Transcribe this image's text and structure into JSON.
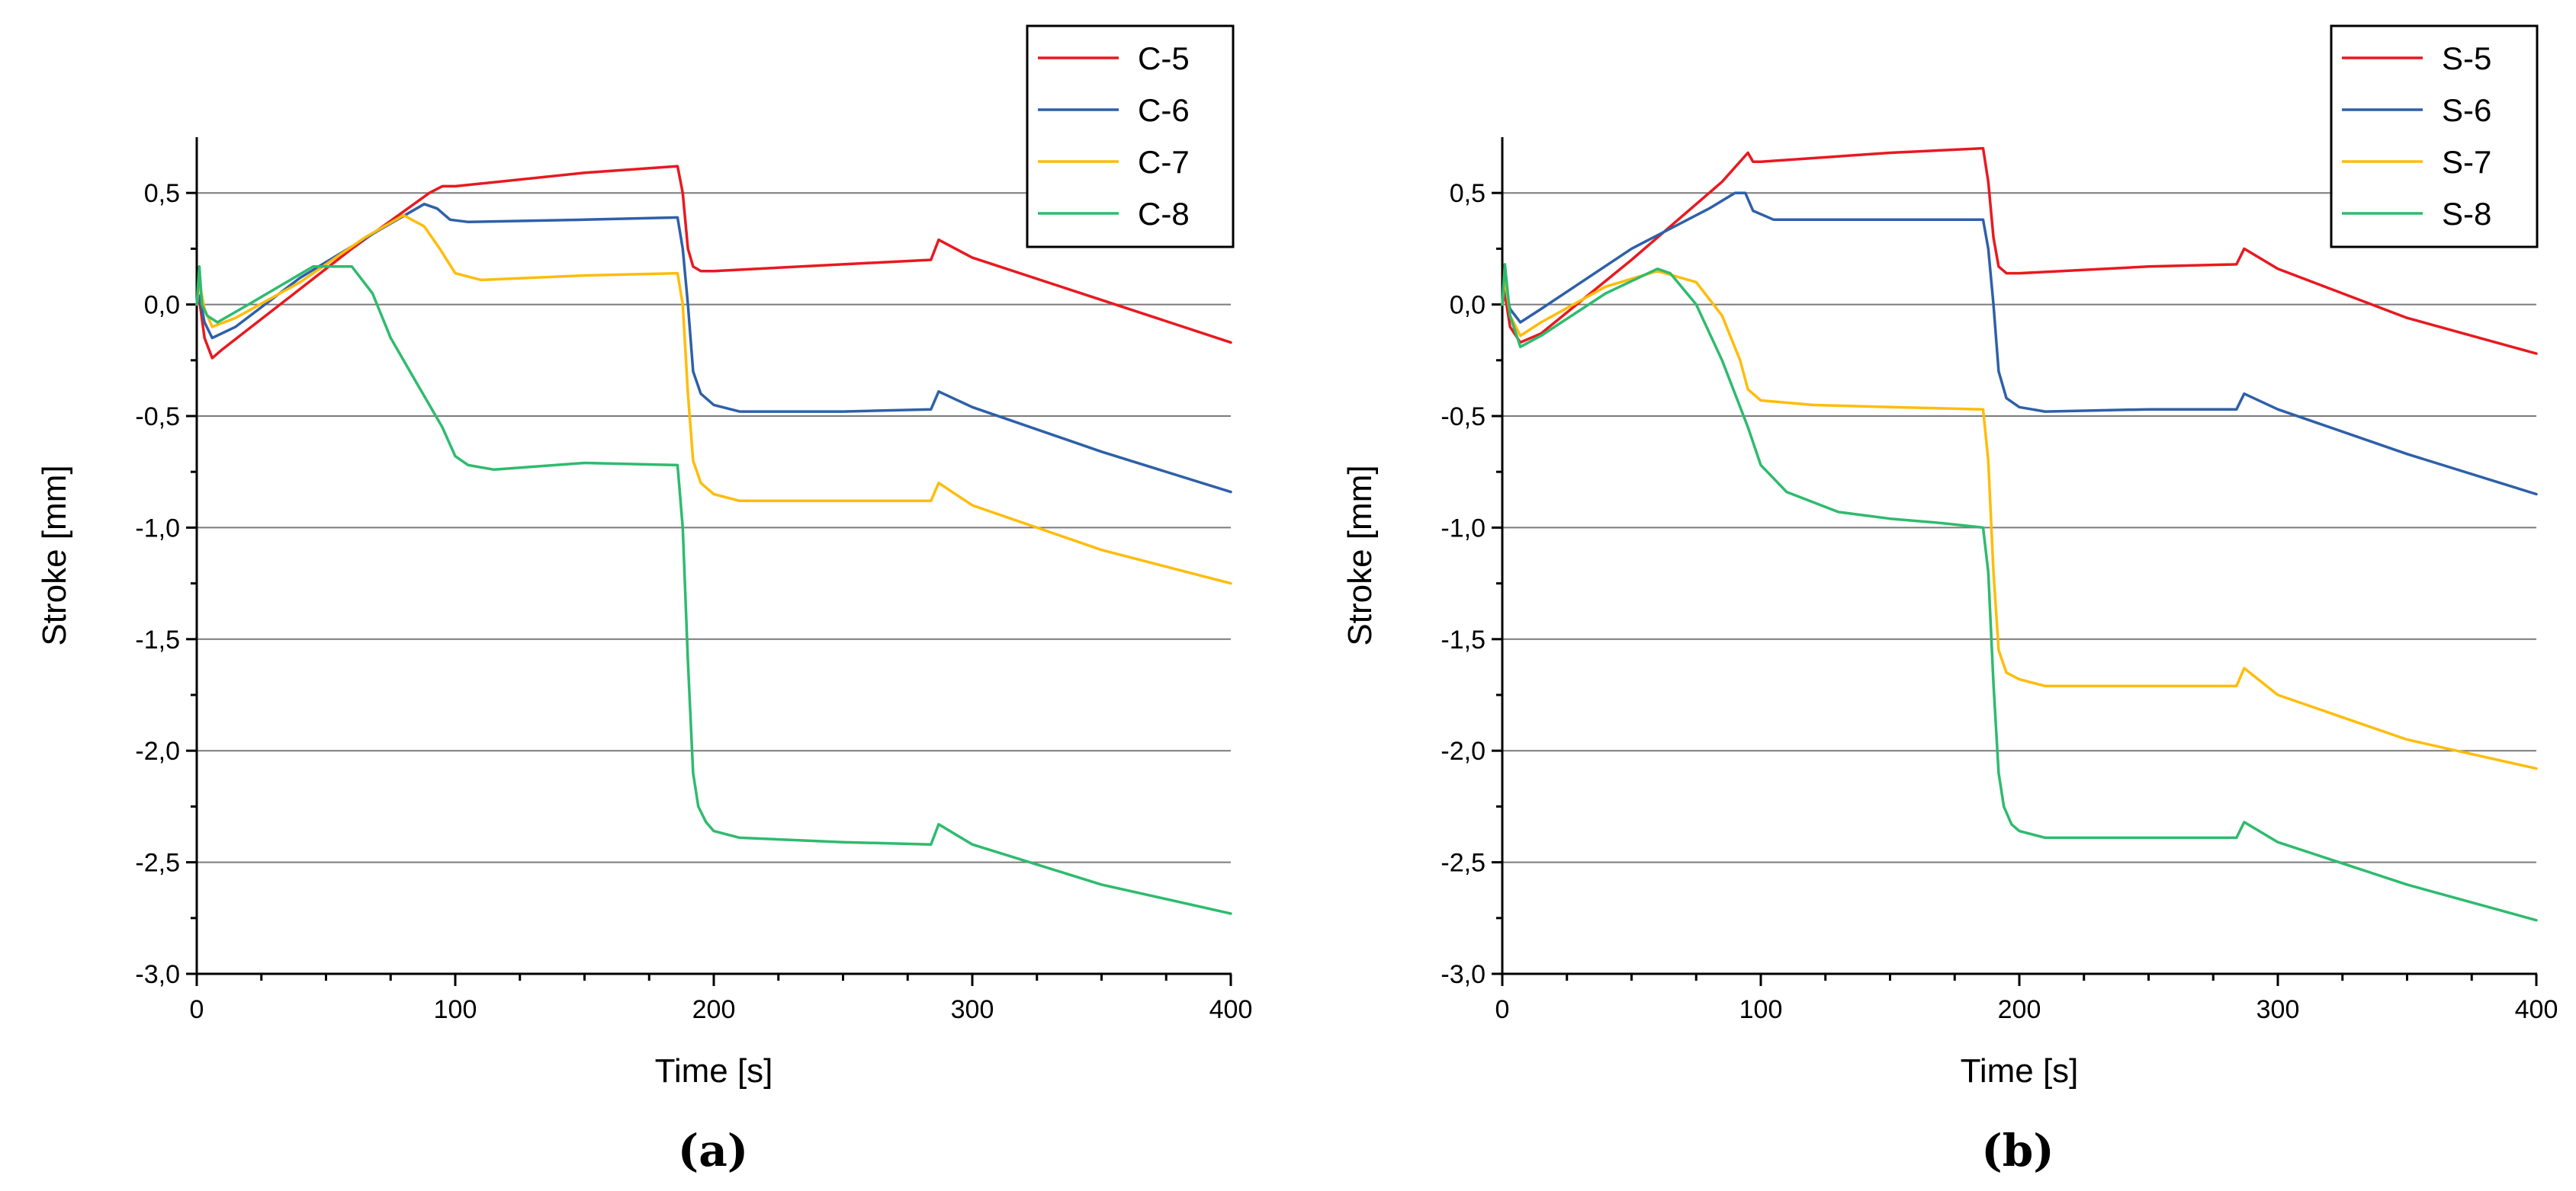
{
  "colors": {
    "red": "#e8191f",
    "blue": "#2e60a8",
    "orange": "#ffbc0a",
    "green": "#2ebb6e"
  },
  "chart_data": [
    {
      "type": "line",
      "panel_label": "(a)",
      "xlabel": "Time [s]",
      "ylabel": "Stroke [mm]",
      "xlim": [
        0,
        400
      ],
      "ylim": [
        -3.0,
        0.75
      ],
      "xticks": [
        0,
        100,
        200,
        300,
        400
      ],
      "xtick_labels": [
        "0",
        "100",
        "200",
        "300",
        "400"
      ],
      "yticks": [
        -3.0,
        -2.5,
        -2.0,
        -1.5,
        -1.0,
        -0.5,
        0.0,
        0.5
      ],
      "ytick_labels": [
        "-3,0",
        "-2,5",
        "-2,0",
        "-1,5",
        "-1,0",
        "-0,5",
        "0,0",
        "0,5"
      ],
      "grid": "horizontal",
      "legend": "top-right",
      "series": [
        {
          "name": "C-5",
          "color": "red",
          "x": [
            0,
            1,
            3,
            6,
            10,
            30,
            60,
            90,
            95,
            100,
            150,
            186,
            188,
            190,
            192,
            195,
            200,
            250,
            284,
            287,
            300,
            350,
            400
          ],
          "y": [
            0.0,
            0.02,
            -0.15,
            -0.24,
            -0.2,
            -0.02,
            0.25,
            0.5,
            0.53,
            0.53,
            0.59,
            0.62,
            0.5,
            0.25,
            0.17,
            0.15,
            0.15,
            0.18,
            0.2,
            0.29,
            0.21,
            0.02,
            -0.17
          ]
        },
        {
          "name": "C-6",
          "color": "blue",
          "x": [
            0,
            1,
            3,
            6,
            15,
            40,
            70,
            88,
            93,
            98,
            105,
            150,
            186,
            188,
            190,
            192,
            195,
            200,
            210,
            250,
            284,
            287,
            300,
            350,
            400
          ],
          "y": [
            0.0,
            0.04,
            -0.08,
            -0.15,
            -0.1,
            0.12,
            0.33,
            0.45,
            0.43,
            0.38,
            0.37,
            0.38,
            0.39,
            0.25,
            0.0,
            -0.3,
            -0.4,
            -0.45,
            -0.48,
            -0.48,
            -0.47,
            -0.39,
            -0.46,
            -0.66,
            -0.84
          ]
        },
        {
          "name": "C-7",
          "color": "orange",
          "x": [
            0,
            1,
            3,
            6,
            15,
            40,
            65,
            80,
            88,
            94,
            100,
            110,
            150,
            186,
            188,
            190,
            192,
            195,
            200,
            210,
            250,
            284,
            287,
            300,
            350,
            400
          ],
          "y": [
            0.0,
            0.1,
            -0.02,
            -0.1,
            -0.06,
            0.1,
            0.3,
            0.4,
            0.35,
            0.25,
            0.14,
            0.11,
            0.13,
            0.14,
            0.0,
            -0.4,
            -0.7,
            -0.8,
            -0.85,
            -0.88,
            -0.88,
            -0.88,
            -0.8,
            -0.9,
            -1.1,
            -1.25
          ]
        },
        {
          "name": "C-8",
          "color": "green",
          "x": [
            0,
            1,
            2,
            4,
            8,
            20,
            45,
            60,
            68,
            75,
            85,
            95,
            100,
            105,
            115,
            150,
            186,
            188,
            190,
            192,
            194,
            197,
            200,
            210,
            250,
            284,
            287,
            300,
            350,
            400
          ],
          "y": [
            0.0,
            0.17,
            0.0,
            -0.05,
            -0.08,
            0.0,
            0.17,
            0.17,
            0.05,
            -0.15,
            -0.35,
            -0.55,
            -0.68,
            -0.72,
            -0.74,
            -0.71,
            -0.72,
            -1.0,
            -1.6,
            -2.1,
            -2.25,
            -2.32,
            -2.36,
            -2.39,
            -2.41,
            -2.42,
            -2.33,
            -2.42,
            -2.6,
            -2.73
          ]
        }
      ]
    },
    {
      "type": "line",
      "panel_label": "(b)",
      "xlabel": "Time [s]",
      "ylabel": "Stroke [mm]",
      "xlim": [
        0,
        400
      ],
      "ylim": [
        -3.0,
        0.75
      ],
      "xticks": [
        0,
        100,
        200,
        300,
        400
      ],
      "xtick_labels": [
        "0",
        "100",
        "200",
        "300",
        "400"
      ],
      "yticks": [
        -3.0,
        -2.5,
        -2.0,
        -1.5,
        -1.0,
        -0.5,
        0.0,
        0.5
      ],
      "ytick_labels": [
        "-3,0",
        "-2,5",
        "-2,0",
        "-1,5",
        "-1,0",
        "-0,5",
        "0,0",
        "0,5"
      ],
      "grid": "horizontal",
      "legend": "top-right",
      "series": [
        {
          "name": "S-5",
          "color": "red",
          "x": [
            0,
            1,
            3,
            7,
            15,
            50,
            85,
            95,
            97,
            100,
            150,
            186,
            188,
            190,
            192,
            195,
            200,
            250,
            284,
            287,
            300,
            350,
            400
          ],
          "y": [
            0.0,
            0.05,
            -0.1,
            -0.17,
            -0.13,
            0.2,
            0.55,
            0.68,
            0.64,
            0.64,
            0.68,
            0.7,
            0.55,
            0.3,
            0.17,
            0.14,
            0.14,
            0.17,
            0.18,
            0.25,
            0.16,
            -0.06,
            -0.22
          ]
        },
        {
          "name": "S-6",
          "color": "blue",
          "x": [
            0,
            1,
            3,
            7,
            15,
            50,
            80,
            90,
            94,
            97,
            105,
            150,
            186,
            188,
            190,
            192,
            195,
            200,
            210,
            250,
            284,
            287,
            300,
            350,
            400
          ],
          "y": [
            0.0,
            0.08,
            -0.02,
            -0.08,
            -0.02,
            0.25,
            0.43,
            0.5,
            0.5,
            0.42,
            0.38,
            0.38,
            0.38,
            0.25,
            0.0,
            -0.3,
            -0.42,
            -0.46,
            -0.48,
            -0.47,
            -0.47,
            -0.4,
            -0.47,
            -0.67,
            -0.85
          ]
        },
        {
          "name": "S-7",
          "color": "orange",
          "x": [
            0,
            1,
            3,
            7,
            15,
            40,
            60,
            75,
            85,
            92,
            95,
            100,
            120,
            150,
            186,
            188,
            190,
            192,
            195,
            200,
            210,
            250,
            284,
            287,
            300,
            350,
            400
          ],
          "y": [
            0.0,
            0.12,
            -0.05,
            -0.14,
            -0.08,
            0.08,
            0.15,
            0.1,
            -0.05,
            -0.25,
            -0.38,
            -0.43,
            -0.45,
            -0.46,
            -0.47,
            -0.7,
            -1.2,
            -1.55,
            -1.65,
            -1.68,
            -1.71,
            -1.71,
            -1.71,
            -1.63,
            -1.75,
            -1.95,
            -2.08
          ]
        },
        {
          "name": "S-8",
          "color": "green",
          "x": [
            0,
            1,
            3,
            7,
            15,
            40,
            60,
            65,
            75,
            85,
            95,
            100,
            110,
            130,
            150,
            170,
            186,
            188,
            190,
            192,
            194,
            197,
            200,
            210,
            250,
            284,
            287,
            300,
            350,
            400
          ],
          "y": [
            0.0,
            0.18,
            -0.05,
            -0.19,
            -0.14,
            0.05,
            0.16,
            0.14,
            0.0,
            -0.25,
            -0.55,
            -0.72,
            -0.84,
            -0.93,
            -0.96,
            -0.98,
            -1.0,
            -1.2,
            -1.7,
            -2.1,
            -2.25,
            -2.33,
            -2.36,
            -2.39,
            -2.39,
            -2.39,
            -2.32,
            -2.41,
            -2.6,
            -2.76
          ]
        }
      ]
    }
  ]
}
